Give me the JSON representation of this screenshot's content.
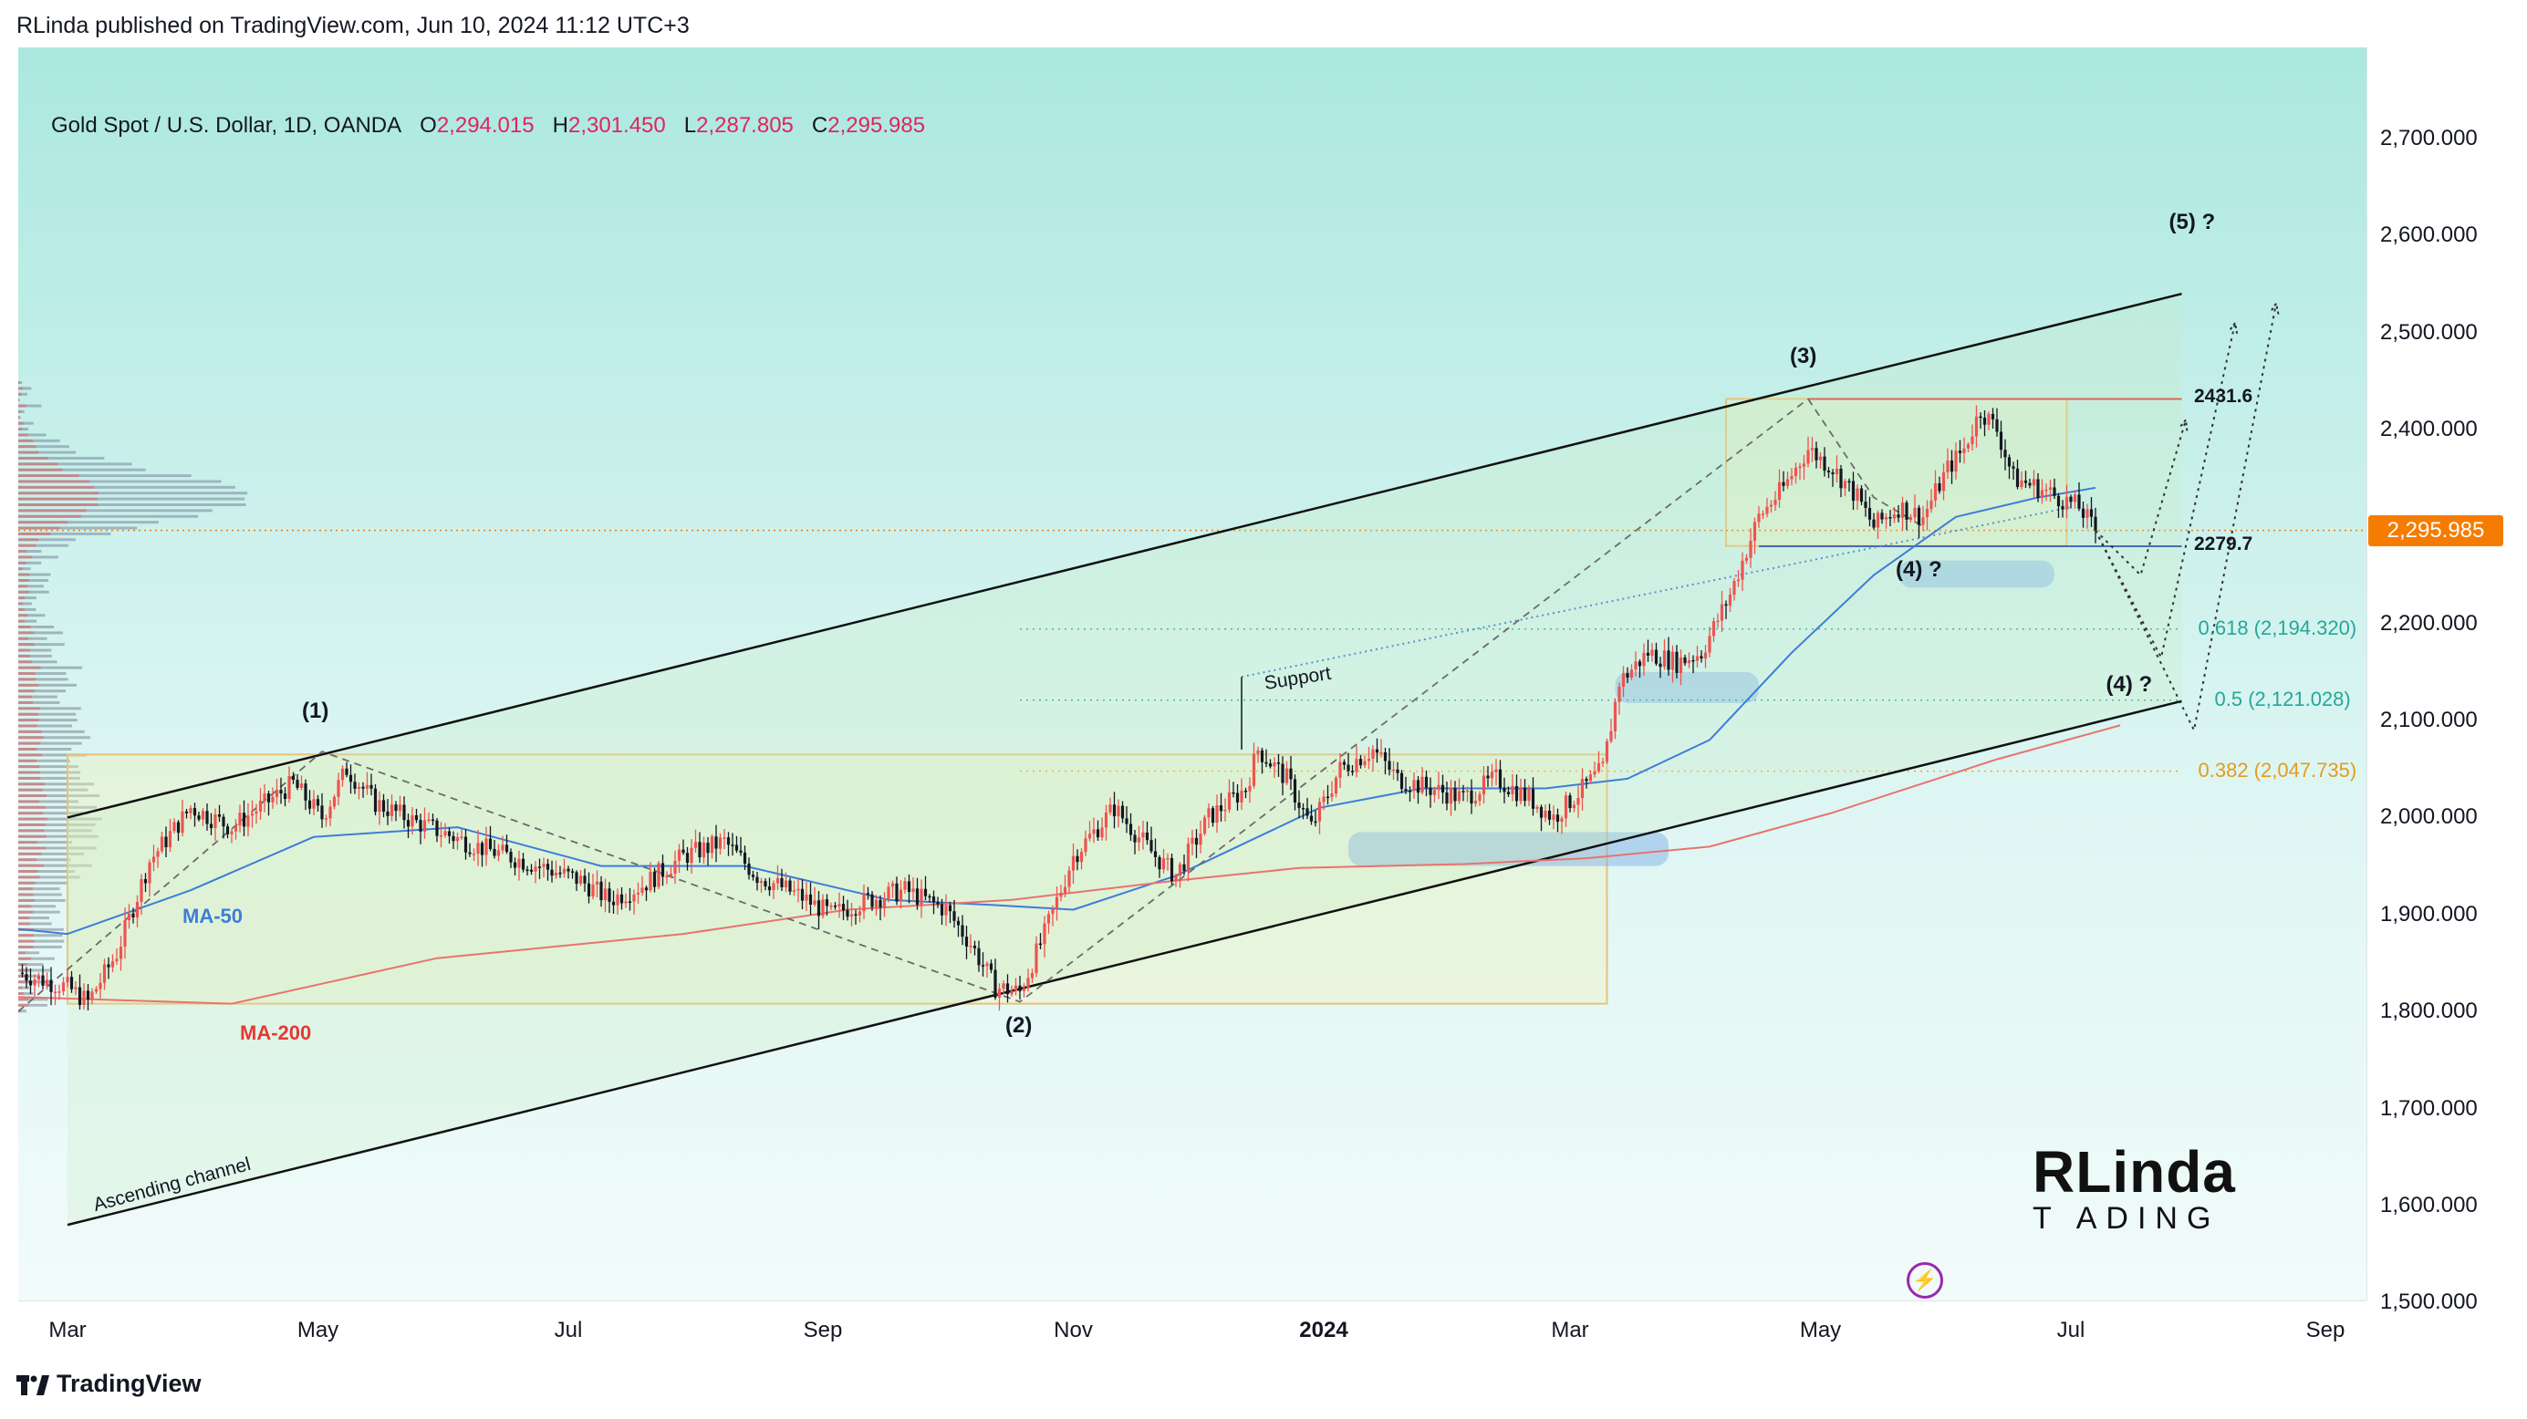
{
  "header": {
    "published": "RLinda published on TradingView.com, Jun 10, 2024 11:12 UTC+3"
  },
  "legend": {
    "symbol": "Gold Spot / U.S. Dollar, 1D, OANDA",
    "o_label": "O",
    "o_value": "2,294.015",
    "h_label": "H",
    "h_value": "2,301.450",
    "l_label": "L",
    "l_value": "2,287.805",
    "c_label": "C",
    "c_value": "2,295.985"
  },
  "price_axis": {
    "ticks": [
      "2,700.000",
      "2,600.000",
      "2,500.000",
      "2,400.000",
      "2,300.000",
      "2,200.000",
      "2,100.000",
      "2,000.000",
      "1,900.000",
      "1,800.000",
      "1,700.000",
      "1,600.000",
      "1,500.000"
    ],
    "last_price": "2,295.985"
  },
  "time_axis": {
    "labels": [
      {
        "text": "Mar",
        "bold": false
      },
      {
        "text": "May",
        "bold": false
      },
      {
        "text": "Jul",
        "bold": false
      },
      {
        "text": "Sep",
        "bold": false
      },
      {
        "text": "Nov",
        "bold": false
      },
      {
        "text": "2024",
        "bold": true
      },
      {
        "text": "Mar",
        "bold": false
      },
      {
        "text": "May",
        "bold": false
      },
      {
        "text": "Jul",
        "bold": false
      },
      {
        "text": "Sep",
        "bold": false
      }
    ]
  },
  "annotations": {
    "wave1": "(1)",
    "wave2": "(2)",
    "wave3": "(3)",
    "wave4a": "(4) ?",
    "wave4b": "(4) ?",
    "wave5": "(5) ?",
    "level_high": "2431.6",
    "level_low": "2279.7",
    "fib_618": "0.618 (2,194.320)",
    "fib_05": "0.5 (2,121.028)",
    "fib_382": "0.382 (2,047.735)",
    "support": "Support",
    "channel": "Ascending channel",
    "ma50": "MA-50",
    "ma200": "MA-200"
  },
  "logo": {
    "line1": "RLinda",
    "line2": "T ADING"
  },
  "footer": {
    "brand": "TradingView"
  },
  "colors": {
    "up": "#ef5350",
    "down": "#131722",
    "ma50": "#3d7dd8",
    "ma200": "#e8736f",
    "accent": "#f57c00",
    "fib_green": "#26a69a",
    "fib_orange": "#f5a623",
    "resistance": "#e53935",
    "support_line": "#1e40af"
  },
  "chart_data": {
    "type": "candlestick",
    "title": "Gold Spot / U.S. Dollar, 1D, OANDA",
    "ylim": [
      1450,
      2730
    ],
    "y_ticks": [
      1500,
      1600,
      1700,
      1800,
      1900,
      2000,
      2100,
      2200,
      2300,
      2400,
      2500,
      2600,
      2700
    ],
    "x_range_days": [
      -12,
      560
    ],
    "x_ticks_days": [
      0,
      61,
      122,
      184,
      245,
      306,
      366,
      427,
      488,
      550
    ],
    "last_close": 2295.985,
    "path_anchors": [
      [
        -12,
        1840
      ],
      [
        0,
        1825
      ],
      [
        5,
        1810
      ],
      [
        12,
        1860
      ],
      [
        20,
        1955
      ],
      [
        30,
        2010
      ],
      [
        40,
        1990
      ],
      [
        55,
        2035
      ],
      [
        62,
        2000
      ],
      [
        68,
        2050
      ],
      [
        75,
        2015
      ],
      [
        85,
        1995
      ],
      [
        100,
        1970
      ],
      [
        115,
        1950
      ],
      [
        125,
        1935
      ],
      [
        132,
        1915
      ],
      [
        140,
        1930
      ],
      [
        150,
        1960
      ],
      [
        160,
        1975
      ],
      [
        168,
        1940
      ],
      [
        178,
        1920
      ],
      [
        186,
        1900
      ],
      [
        195,
        1915
      ],
      [
        204,
        1925
      ],
      [
        214,
        1905
      ],
      [
        220,
        1870
      ],
      [
        226,
        1825
      ],
      [
        232,
        1820
      ],
      [
        238,
        1880
      ],
      [
        245,
        1960
      ],
      [
        255,
        2010
      ],
      [
        265,
        1960
      ],
      [
        270,
        1940
      ],
      [
        278,
        2000
      ],
      [
        287,
        2030
      ],
      [
        290,
        2070
      ],
      [
        297,
        2040
      ],
      [
        303,
        1990
      ],
      [
        310,
        2050
      ],
      [
        318,
        2070
      ],
      [
        324,
        2040
      ],
      [
        332,
        2030
      ],
      [
        340,
        2020
      ],
      [
        348,
        2040
      ],
      [
        356,
        2020
      ],
      [
        362,
        2000
      ],
      [
        368,
        2025
      ],
      [
        374,
        2050
      ],
      [
        378,
        2140
      ],
      [
        385,
        2170
      ],
      [
        392,
        2160
      ],
      [
        398,
        2170
      ],
      [
        405,
        2230
      ],
      [
        412,
        2310
      ],
      [
        418,
        2340
      ],
      [
        424,
        2380
      ],
      [
        430,
        2360
      ],
      [
        436,
        2330
      ],
      [
        440,
        2300
      ],
      [
        446,
        2320
      ],
      [
        452,
        2310
      ],
      [
        458,
        2360
      ],
      [
        462,
        2380
      ],
      [
        466,
        2420
      ],
      [
        470,
        2400
      ],
      [
        474,
        2350
      ],
      [
        480,
        2340
      ],
      [
        485,
        2330
      ],
      [
        490,
        2320
      ],
      [
        494,
        2296
      ]
    ],
    "series": [
      {
        "name": "MA-50",
        "anchors": [
          [
            -12,
            1885
          ],
          [
            0,
            1880
          ],
          [
            30,
            1925
          ],
          [
            60,
            1980
          ],
          [
            95,
            1990
          ],
          [
            130,
            1950
          ],
          [
            165,
            1950
          ],
          [
            200,
            1915
          ],
          [
            225,
            1910
          ],
          [
            245,
            1905
          ],
          [
            270,
            1940
          ],
          [
            290,
            1980
          ],
          [
            305,
            2010
          ],
          [
            330,
            2030
          ],
          [
            360,
            2030
          ],
          [
            380,
            2040
          ],
          [
            400,
            2080
          ],
          [
            420,
            2170
          ],
          [
            440,
            2250
          ],
          [
            460,
            2310
          ],
          [
            480,
            2330
          ],
          [
            494,
            2340
          ]
        ]
      },
      {
        "name": "MA-200",
        "anchors": [
          [
            -12,
            1815
          ],
          [
            40,
            1808
          ],
          [
            90,
            1855
          ],
          [
            150,
            1880
          ],
          [
            190,
            1905
          ],
          [
            230,
            1915
          ],
          [
            270,
            1935
          ],
          [
            300,
            1948
          ],
          [
            340,
            1952
          ],
          [
            370,
            1958
          ],
          [
            400,
            1970
          ],
          [
            430,
            2005
          ],
          [
            470,
            2060
          ],
          [
            500,
            2095
          ]
        ]
      }
    ],
    "levels": [
      {
        "name": "resistance",
        "value": 2431.6
      },
      {
        "name": "support",
        "value": 2279.7
      },
      {
        "name": "fib_0.618",
        "value": 2194.32
      },
      {
        "name": "fib_0.5",
        "value": 2121.028
      },
      {
        "name": "fib_0.382",
        "value": 2047.735
      }
    ],
    "channel": {
      "upper": [
        [
          0,
          2000
        ],
        [
          515,
          2540
        ]
      ],
      "lower": [
        [
          0,
          1580
        ],
        [
          515,
          2120
        ]
      ]
    },
    "waves": [
      {
        "label": "(1)",
        "day": 62,
        "price": 2068
      },
      {
        "label": "(2)",
        "day": 232,
        "price": 1810
      },
      {
        "label": "(3)",
        "day": 424,
        "price": 2431.6
      },
      {
        "label": "(4) ?",
        "day": 452,
        "price": 2280
      },
      {
        "label": "(4) ?",
        "day": 504,
        "price": 2165
      },
      {
        "label": "(5) ?",
        "day": 515,
        "price": 2540
      }
    ],
    "scenarios": [
      [
        [
          494,
          2296
        ],
        [
          505,
          2250
        ],
        [
          516,
          2410
        ]
      ],
      [
        [
          494,
          2296
        ],
        [
          510,
          2165
        ],
        [
          528,
          2510
        ]
      ],
      [
        [
          494,
          2296
        ],
        [
          518,
          2090
        ],
        [
          538,
          2530
        ]
      ]
    ],
    "zones": [
      {
        "name": "range-box-1",
        "x": [
          0,
          375
        ],
        "y": [
          1808,
          2065
        ]
      },
      {
        "name": "range-box-3",
        "x": [
          404,
          487
        ],
        "y": [
          2280,
          2431.6
        ]
      },
      {
        "name": "demand-zone-1",
        "x": [
          312,
          390
        ],
        "y": [
          1950,
          1985
        ]
      },
      {
        "name": "demand-zone-2",
        "x": [
          377,
          412
        ],
        "y": [
          2118,
          2150
        ]
      },
      {
        "name": "demand-zone-3",
        "x": [
          446,
          484
        ],
        "y": [
          2237,
          2265
        ]
      }
    ]
  }
}
